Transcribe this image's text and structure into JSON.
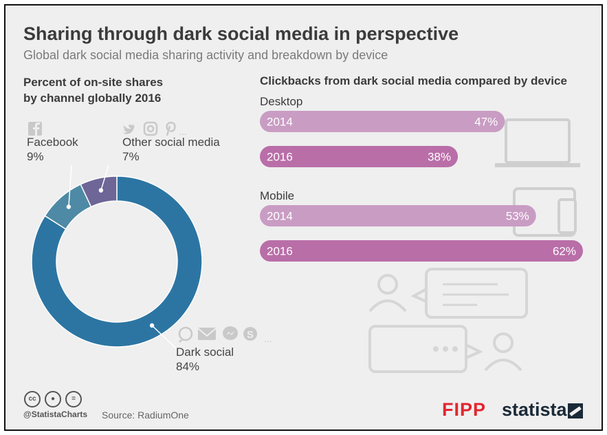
{
  "title": "Sharing through dark social media in perspective",
  "subtitle": "Global dark social media sharing activity and breakdown by device",
  "left_heading_line1": "Percent of on-site shares",
  "left_heading_line2": "by channel globally 2016",
  "right_heading": "Clickbacks from dark social media compared by device",
  "footer": {
    "handle": "@StatistaCharts",
    "source": "Source: RadiumOne",
    "fipp": "FIPP",
    "statista": "statista"
  },
  "colors": {
    "dark_social": "#2c75a3",
    "facebook": "#4e8aa5",
    "other": "#6d6696",
    "bar_2014": "#c99cc4",
    "bar_2016": "#b96ea8",
    "background": "#efefef"
  },
  "chart_data": [
    {
      "type": "pie",
      "title": "Percent of on-site shares by channel globally 2016",
      "variant": "donut",
      "slices": [
        {
          "name": "Dark social",
          "value": 84,
          "label": "84%",
          "icons": [
            "whatsapp-icon",
            "mail-icon",
            "messenger-icon",
            "skype-icon"
          ]
        },
        {
          "name": "Facebook",
          "value": 9,
          "label": "9%",
          "icons": [
            "facebook-icon"
          ]
        },
        {
          "name": "Other social media",
          "value": 7,
          "label": "7%",
          "icons": [
            "twitter-icon",
            "instagram-icon",
            "pinterest-icon"
          ]
        }
      ]
    },
    {
      "type": "bar",
      "orientation": "horizontal",
      "title": "Clickbacks from dark social media compared by device",
      "groups": [
        {
          "name": "Desktop",
          "bars": [
            {
              "label": "2014",
              "value": 47,
              "text": "47%"
            },
            {
              "label": "2016",
              "value": 38,
              "text": "38%"
            }
          ]
        },
        {
          "name": "Mobile",
          "bars": [
            {
              "label": "2014",
              "value": 53,
              "text": "53%"
            },
            {
              "label": "2016",
              "value": 62,
              "text": "62%"
            }
          ]
        }
      ],
      "xlim": [
        0,
        62
      ]
    }
  ]
}
